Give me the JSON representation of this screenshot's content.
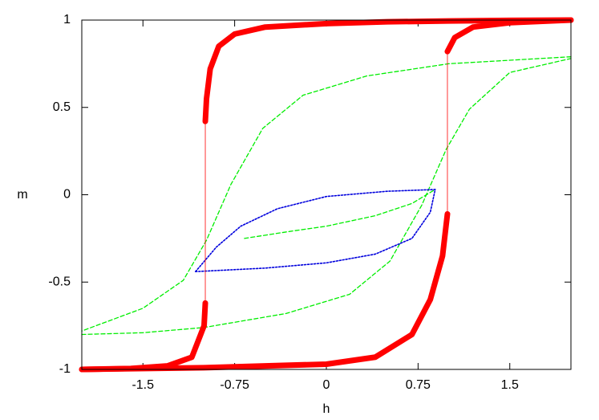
{
  "chart_data": {
    "type": "line",
    "x_label": "h",
    "y_label": "m",
    "xlim": [
      -2,
      2
    ],
    "ylim": [
      -1,
      1
    ],
    "xticks": [
      -1.5,
      -0.75,
      0,
      0.75,
      1.5
    ],
    "yticks": [
      -1,
      -0.5,
      0,
      0.5,
      1
    ],
    "grid": false,
    "series": [
      {
        "color": "#00ee00",
        "style": "dashed",
        "width": 1.3,
        "x": [
          2,
          1.5,
          1,
          0.33,
          -0.19,
          -0.52,
          -0.78,
          -0.98,
          -1.17,
          -1.5,
          -2
        ],
        "values": [
          0.79,
          0.77,
          0.75,
          0.68,
          0.57,
          0.38,
          0.06,
          -0.26,
          -0.49,
          -0.65,
          -0.78
        ]
      },
      {
        "color": "#00ee00",
        "style": "dashed",
        "width": 1.3,
        "x": [
          -2,
          -1.5,
          -1,
          -0.33,
          0.19,
          0.52,
          0.78,
          0.98,
          1.17,
          1.5,
          2
        ],
        "values": [
          -0.8,
          -0.79,
          -0.76,
          -0.68,
          -0.57,
          -0.38,
          -0.06,
          0.26,
          0.49,
          0.7,
          0.78
        ]
      },
      {
        "color": "#00ee00",
        "style": "dashed",
        "width": 1.3,
        "x": [
          -0.67,
          -0.3,
          0,
          0.4,
          0.7,
          0.89
        ],
        "values": [
          -0.25,
          -0.21,
          -0.18,
          -0.12,
          -0.05,
          0.03
        ]
      },
      {
        "color": "#0000dd",
        "style": "dotted",
        "width": 1.6,
        "x": [
          -1.07,
          -0.9,
          -0.7,
          -0.4,
          0,
          0.5,
          0.89
        ],
        "values": [
          -0.44,
          -0.3,
          -0.18,
          -0.08,
          -0.01,
          0.02,
          0.03
        ]
      },
      {
        "color": "#0000dd",
        "style": "dotted",
        "width": 1.6,
        "x": [
          -1.07,
          -0.5,
          0,
          0.4,
          0.7,
          0.85,
          0.89
        ],
        "values": [
          -0.44,
          -0.42,
          -0.39,
          -0.34,
          -0.25,
          -0.1,
          0.03
        ]
      },
      {
        "color": "#ff0000",
        "style": "solid",
        "width": 7,
        "x": [
          2,
          1.5,
          1,
          0.5,
          0,
          -0.5,
          -0.75,
          -0.88,
          -0.95,
          -0.98,
          -0.99
        ],
        "values": [
          1,
          0.998,
          0.995,
          0.99,
          0.98,
          0.96,
          0.92,
          0.85,
          0.72,
          0.55,
          0.42
        ]
      },
      {
        "color": "#ff0000",
        "style": "solid",
        "width": 0.8,
        "x": [
          -0.99,
          -0.99
        ],
        "values": [
          0.42,
          -0.62
        ]
      },
      {
        "color": "#ff0000",
        "style": "solid",
        "width": 7,
        "x": [
          -0.99,
          -1.0,
          -1.1,
          -1.3,
          -1.6,
          -2
        ],
        "values": [
          -0.62,
          -0.75,
          -0.93,
          -0.98,
          -0.995,
          -1
        ]
      },
      {
        "color": "#ff0000",
        "style": "solid",
        "width": 7,
        "x": [
          -2,
          -1,
          0,
          0.4,
          0.7,
          0.85,
          0.95,
          0.99
        ],
        "values": [
          -1,
          -0.99,
          -0.97,
          -0.93,
          -0.8,
          -0.6,
          -0.35,
          -0.11
        ]
      },
      {
        "color": "#ff0000",
        "style": "solid",
        "width": 0.8,
        "x": [
          0.99,
          0.99
        ],
        "values": [
          -0.11,
          0.82
        ]
      },
      {
        "color": "#ff0000",
        "style": "solid",
        "width": 7,
        "x": [
          0.99,
          1.05,
          1.2,
          1.5,
          2
        ],
        "values": [
          0.82,
          0.9,
          0.96,
          0.985,
          1
        ]
      }
    ]
  }
}
